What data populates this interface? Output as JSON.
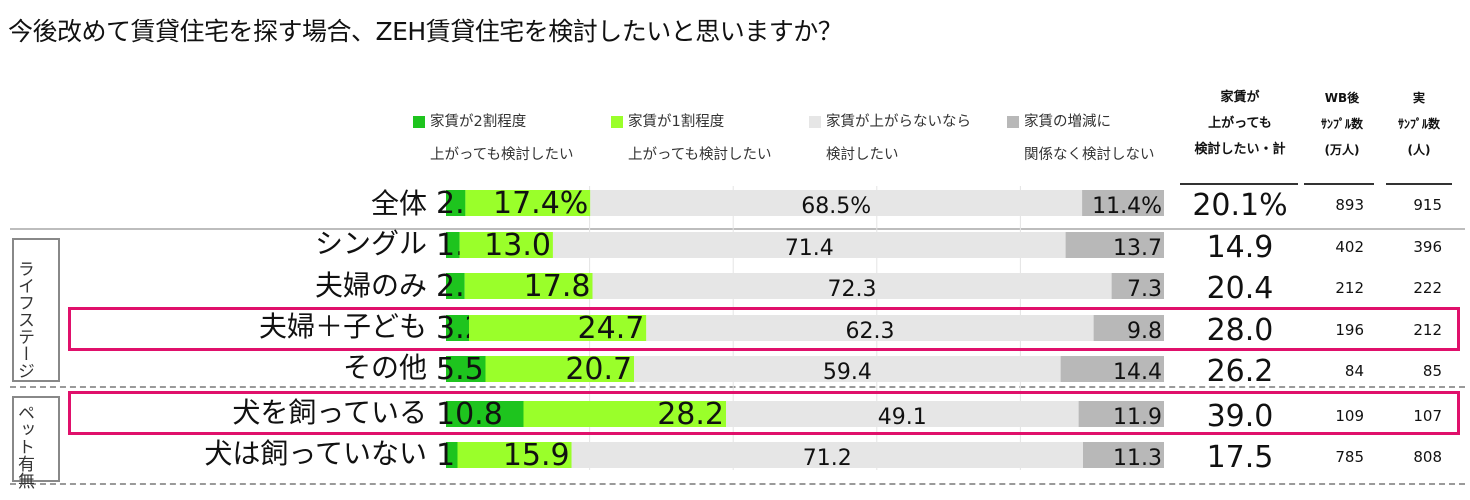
{
  "title": "今後改めて賃貸住宅を探す場合、ZEH賃貸住宅を検討したいと思いますか？",
  "legend": [
    {
      "line1": "家賃が2割程度",
      "line2": "上がっても検討したい",
      "color": "#1ec41e"
    },
    {
      "line1": "家賃が1割程度",
      "line2": "上がっても検討したい",
      "color": "#9aff2a"
    },
    {
      "line1": "家賃が上がらないなら",
      "line2": "検討したい",
      "color": "#e6e6e6"
    },
    {
      "line1": "家賃の増減に",
      "line2": "関係なく検討しない",
      "color": "#b8b8b8"
    }
  ],
  "headers": {
    "sum": [
      "家賃が",
      "上がっても",
      "検討したい・計"
    ],
    "wb": [
      "WB後",
      "ｻﾝﾌﾟﾙ数",
      "(万人)"
    ],
    "real": [
      "実",
      "ｻﾝﾌﾟﾙ数",
      "(人)"
    ]
  },
  "groups": {
    "life_stage": "ライフステージ",
    "pet": "ペット有無"
  },
  "chart_data": {
    "type": "bar",
    "stacked": true,
    "orientation": "horizontal",
    "categories": [
      "全体",
      "シングル",
      "夫婦のみ",
      "夫婦＋子ども",
      "その他",
      "犬を飼っている",
      "犬は飼っていない"
    ],
    "series": [
      {
        "name": "家賃が2割程度上がっても検討したい",
        "values": [
          2.7,
          1.9,
          2.6,
          3.2,
          5.5,
          10.8,
          1.6
        ]
      },
      {
        "name": "家賃が1割程度上がっても検討したい",
        "values": [
          17.4,
          13.0,
          17.8,
          24.7,
          20.7,
          28.2,
          15.9
        ]
      },
      {
        "name": "家賃が上がらないなら検討したい",
        "values": [
          68.5,
          71.4,
          72.3,
          62.3,
          59.4,
          49.1,
          71.2
        ]
      },
      {
        "name": "家賃の増減に関係なく検討しない",
        "values": [
          11.4,
          13.7,
          7.3,
          9.8,
          14.4,
          11.9,
          11.3
        ]
      }
    ],
    "labels": [
      [
        "2.7%",
        "17.4%",
        "68.5%",
        "11.4%"
      ],
      [
        "1.9",
        "13.0",
        "71.4",
        "13.7"
      ],
      [
        "2.6",
        "17.8",
        "72.3",
        "7.3"
      ],
      [
        "3.2",
        "24.7",
        "62.3",
        "9.8"
      ],
      [
        "5.5",
        "20.7",
        "59.4",
        "14.4"
      ],
      [
        "10.8",
        "28.2",
        "49.1",
        "11.9"
      ],
      [
        "1.6",
        "15.9",
        "71.2",
        "11.3"
      ]
    ],
    "sum_labels": [
      "20.1%",
      "14.9",
      "20.4",
      "28.0",
      "26.2",
      "39.0",
      "17.5"
    ],
    "wb_samples": [
      "893",
      "402",
      "212",
      "196",
      "84",
      "109",
      "785"
    ],
    "real_samples": [
      "915",
      "396",
      "222",
      "212",
      "85",
      "107",
      "808"
    ],
    "highlighted_rows": [
      "夫婦＋子ども",
      "犬を飼っている"
    ],
    "xlim": [
      0,
      100
    ]
  }
}
